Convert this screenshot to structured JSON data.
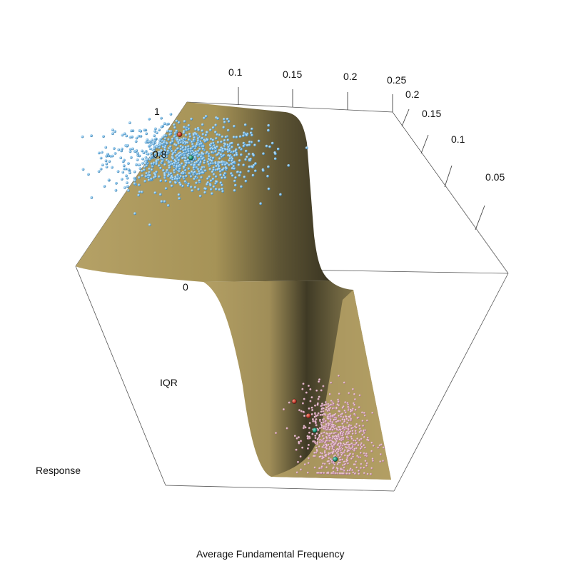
{
  "chart_data": {
    "type": "scatter",
    "title": "",
    "xlabel": "Average Fundamental Frequency",
    "ylabel": "IQR",
    "zlabel": "Response",
    "x_ticks": [
      "0.1",
      "0.15",
      "0.2",
      "0.25"
    ],
    "y_ticks": [
      "0.2",
      "0.15",
      "0.1",
      "0.05"
    ],
    "z_ticks": [
      "1",
      "0.8",
      "0"
    ],
    "surface": {
      "kind": "logistic fit surface",
      "color": "#b39f64",
      "shadow_color": "#3f3a25",
      "transition_x": 0.18
    },
    "series": [
      {
        "response": 1,
        "color": "#74b6e3",
        "points_center": {
          "x": 0.13,
          "y": 0.18
        },
        "spread": {
          "x": 0.035,
          "y": 0.03
        }
      },
      {
        "response": 0,
        "color": "#d4a0b6",
        "points_center": {
          "x": 0.205,
          "y": 0.05
        },
        "spread": {
          "x": 0.02,
          "y": 0.03
        }
      }
    ],
    "highlighted_points": [
      {
        "color": "#c0392b",
        "response": 1,
        "x": 0.12,
        "y": 0.22
      },
      {
        "color": "#1a9a7a",
        "response": 1,
        "x": 0.135,
        "y": 0.18
      },
      {
        "color": "#c0392b",
        "response": 0,
        "x": 0.16,
        "y": 0.1
      },
      {
        "color": "#c0392b",
        "response": 0,
        "x": 0.175,
        "y": 0.08
      },
      {
        "color": "#1a9a7a",
        "response": 0,
        "x": 0.18,
        "y": 0.06
      },
      {
        "color": "#1a9a7a",
        "response": 0,
        "x": 0.2,
        "y": 0.02
      }
    ],
    "grid": false,
    "legend": "none"
  }
}
